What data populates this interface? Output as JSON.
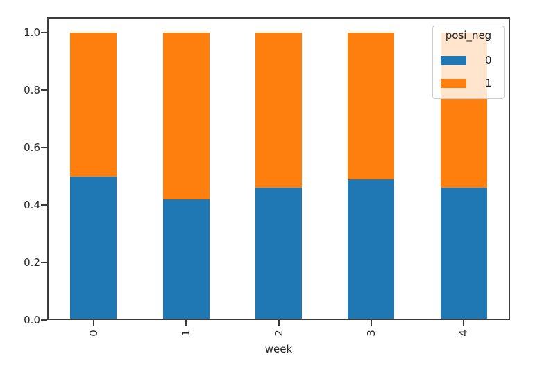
{
  "chart_data": {
    "type": "bar",
    "stacked": true,
    "orientation": "vertical",
    "categories": [
      "0",
      "1",
      "2",
      "3",
      "4"
    ],
    "series": [
      {
        "name": "0",
        "color": "#1f77b4",
        "values": [
          0.5,
          0.42,
          0.46,
          0.49,
          0.46
        ]
      },
      {
        "name": "1",
        "color": "#ff7f0e",
        "values": [
          0.5,
          0.58,
          0.54,
          0.51,
          0.54
        ]
      }
    ],
    "title": "",
    "xlabel": "week",
    "ylabel": "",
    "ylim": [
      0.0,
      1.05
    ],
    "yticks": [
      "0.0",
      "0.2",
      "0.4",
      "0.6",
      "0.8",
      "1.0"
    ],
    "xtick_rotation": 90,
    "grid": false,
    "legend": {
      "title": "posi_neg",
      "position": "upper right",
      "entries": [
        {
          "label": "0",
          "color": "#1f77b4"
        },
        {
          "label": "1",
          "color": "#ff7f0e"
        }
      ]
    }
  },
  "colors": {
    "background": "#ffffff",
    "axis": "#3b3b3b",
    "text": "#262626",
    "legend_border": "#cccccc",
    "series_blue": "#1f77b4",
    "series_orange": "#ff7f0e"
  }
}
